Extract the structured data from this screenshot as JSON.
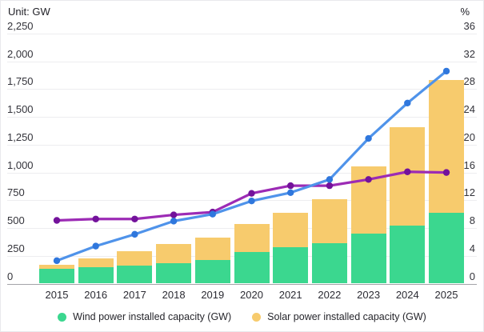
{
  "header": {
    "left_unit_label": "Unit: GW",
    "right_unit_label": "%"
  },
  "colors": {
    "wind_bar": "#3bd78f",
    "solar_bar": "#f7cb6d",
    "blue_line": "#4f93ea",
    "blue_dot": "#2f77dd",
    "purple_line": "#9c2bb5",
    "purple_dot": "#73129b",
    "gridline": "#ededf0",
    "axis_line": "#a3a3a8"
  },
  "chart_data": {
    "type": "bar",
    "subtype": "stacked-bars-with-two-percent-lines",
    "categories": [
      "2015",
      "2016",
      "2017",
      "2018",
      "2019",
      "2020",
      "2021",
      "2022",
      "2023",
      "2024",
      "2025"
    ],
    "series": [
      {
        "name": "Wind power installed capacity (GW)",
        "type": "bar",
        "stack": "capacity",
        "axis": "left",
        "values": [
          130,
          149,
          164,
          184,
          210,
          282,
          330,
          367,
          448,
          525,
          640
        ]
      },
      {
        "name": "Solar power installed capacity (GW)",
        "type": "bar",
        "stack": "capacity",
        "axis": "left",
        "values": [
          42,
          78,
          130,
          175,
          205,
          253,
          305,
          392,
          607,
          880,
          1190
        ]
      },
      {
        "name": "line_blue",
        "type": "line",
        "axis": "right",
        "values": [
          3.3,
          5.4,
          7.1,
          9.0,
          10.0,
          11.9,
          13.1,
          15.0,
          20.9,
          26.0,
          30.6
        ]
      },
      {
        "name": "line_purple",
        "type": "line",
        "axis": "right",
        "values": [
          9.1,
          9.3,
          9.3,
          9.9,
          10.3,
          13.0,
          14.1,
          14.1,
          15.0,
          16.1,
          16.0
        ]
      }
    ],
    "left_axis": {
      "label": "Unit: GW",
      "ticks": [
        0,
        250,
        500,
        750,
        1000,
        1250,
        1500,
        1750,
        2000,
        2250
      ],
      "tick_labels": [
        "0",
        "250",
        "500",
        "750",
        "1,000",
        "1,250",
        "1,500",
        "1,750",
        "2,000",
        "2,250"
      ],
      "range": [
        0,
        2250
      ]
    },
    "right_axis": {
      "label": "%",
      "ticks": [
        0,
        4,
        8,
        12,
        16,
        20,
        24,
        28,
        32,
        36
      ],
      "tick_labels": [
        "0",
        "4",
        "8",
        "12",
        "16",
        "20",
        "24",
        "28",
        "32",
        "36"
      ],
      "range": [
        0,
        36
      ]
    },
    "grid": true,
    "legend_position": "bottom",
    "legend": [
      {
        "label": "Wind power installed capacity (GW)",
        "color": "#3bd78f"
      },
      {
        "label": "Solar power installed capacity (GW)",
        "color": "#f7cb6d"
      }
    ]
  }
}
